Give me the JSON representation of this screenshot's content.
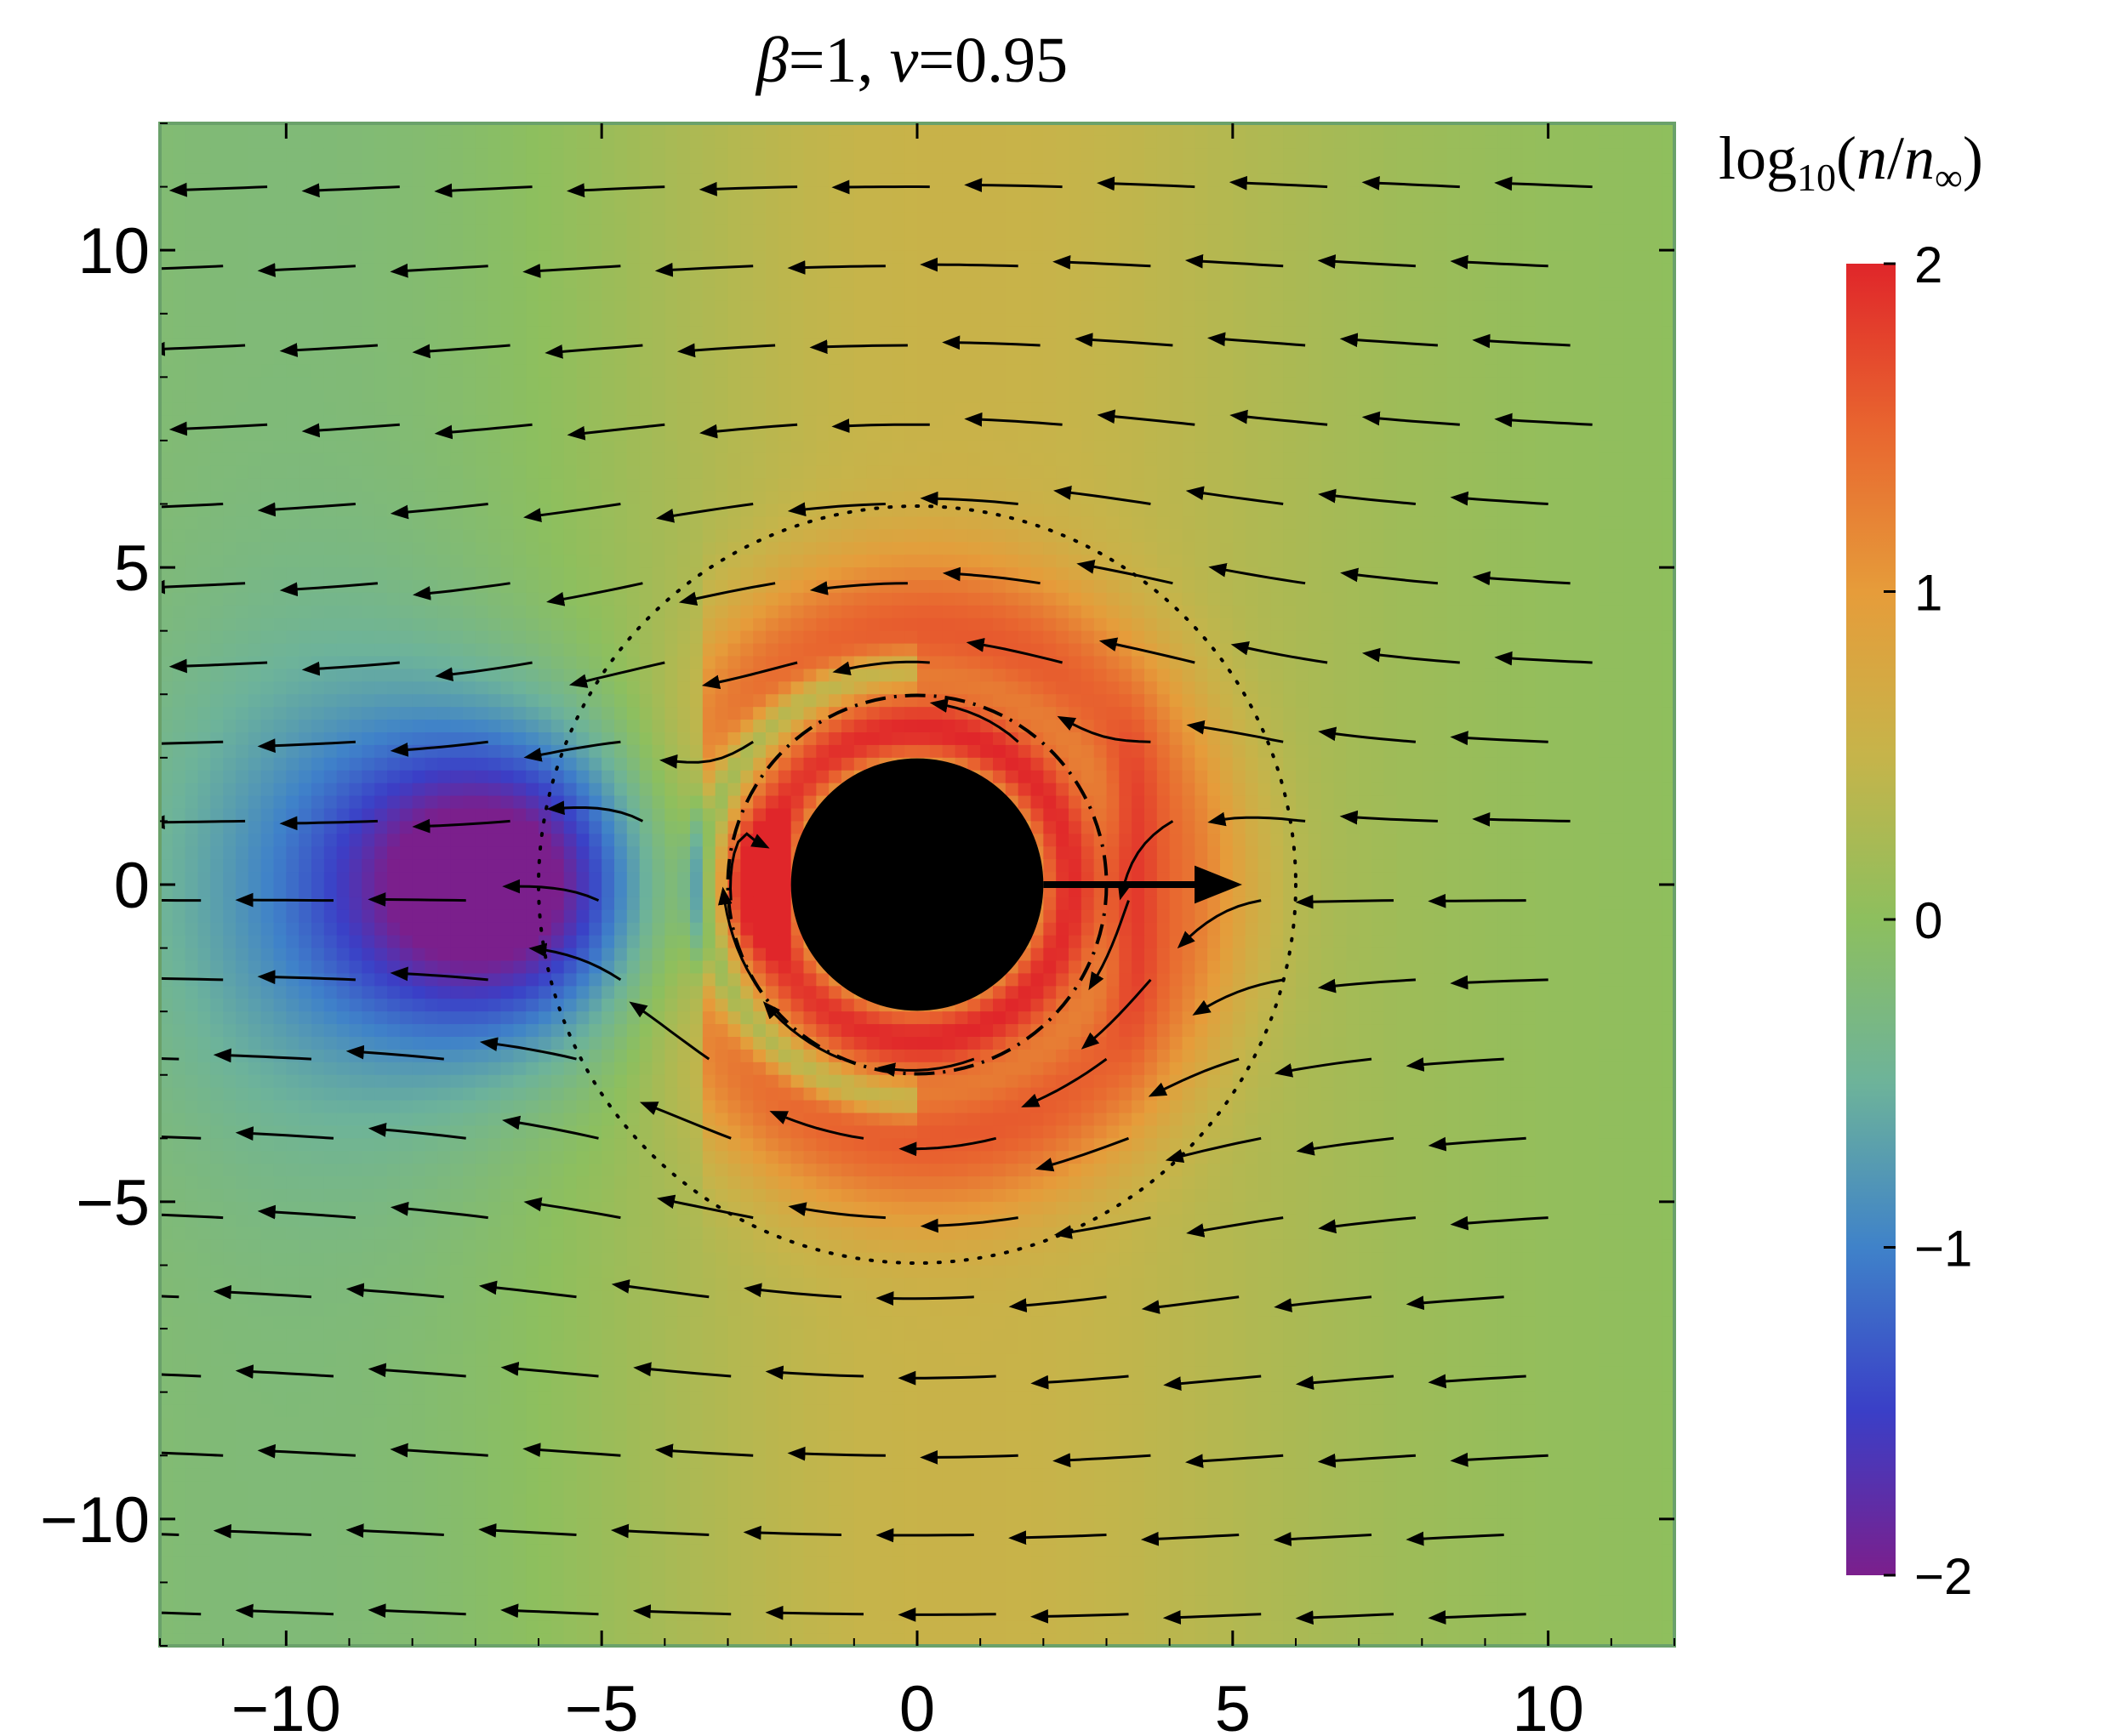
{
  "chart_data": {
    "type": "heatmap",
    "title": "β=1, v=0.95",
    "title_parts": {
      "beta": "β",
      "beta_value": "=1, ",
      "v": "v",
      "v_value": "=0.95"
    },
    "xlim": [
      -12,
      12
    ],
    "ylim": [
      -12,
      12
    ],
    "x_ticks": [
      -10,
      -5,
      0,
      5,
      10
    ],
    "y_ticks": [
      -10,
      -5,
      0,
      5,
      10
    ],
    "x_tick_labels": [
      "−10",
      "−5",
      "0",
      "5",
      "10"
    ],
    "y_tick_labels": [
      "−10",
      "−5",
      "0",
      "5",
      "10"
    ],
    "grid": false,
    "colorbar": {
      "title": "log₁₀(n/n∞)",
      "title_parts": {
        "log": "log",
        "base": "10",
        "open": "(",
        "n": "n",
        "slash": "/",
        "n_inf": "n",
        "inf_sub": "∞",
        "close": ")"
      },
      "range": [
        -2,
        2
      ],
      "ticks": [
        2,
        1,
        0,
        -1,
        -2
      ],
      "tick_labels": [
        "2",
        "1",
        "0",
        "−1",
        "−2"
      ],
      "colors": [
        "#7b1f8c",
        "#3a3fc7",
        "#3f82c9",
        "#6db39a",
        "#8dbf5e",
        "#c6b44a",
        "#e69c3a",
        "#e8652f",
        "#e0262a"
      ]
    },
    "features": {
      "central_disk": {
        "center": [
          0,
          0
        ],
        "radius": 2,
        "color": "#000000"
      },
      "inner_dashdot_circle": {
        "center": [
          0,
          0
        ],
        "radius": 3
      },
      "outer_dotted_circle": {
        "center": [
          0,
          0
        ],
        "radius": 6
      },
      "velocity_arrow": {
        "from": [
          2,
          0
        ],
        "to": [
          5,
          0
        ]
      }
    },
    "density_field": {
      "bow_shock_peak": [
        -2.5,
        0
      ],
      "rarefaction_wake_center": [
        -6.5,
        0
      ],
      "flow_direction": "-x"
    }
  }
}
